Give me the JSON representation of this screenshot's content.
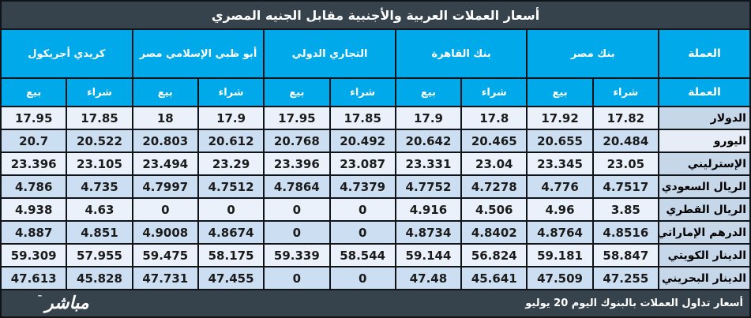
{
  "title": "أسعار العملات العربية والأجنبية مقابل الجنيه المصري",
  "colors": {
    "header_blue": "#00A9E9",
    "dark_slate": "#36434C",
    "row_light": "#EAF1FA",
    "row_medium": "#CCDEF1",
    "currency_cell": "#C7D7EA",
    "currency_cell_light": "#E7EDF6",
    "border": "#101418"
  },
  "table": {
    "currency_column_header": "العملة",
    "sell_label": "بيع",
    "buy_label": "شراء",
    "banks_note": "banks listed right-to-left as displayed; within each bank the buy (شراء) column is rightmost",
    "banks": [
      {
        "name": "بنك مصر"
      },
      {
        "name": "بنك القاهرة"
      },
      {
        "name": "التجاري الدولي"
      },
      {
        "name": "أبو ظبي الإسلامي مصر"
      },
      {
        "name": "كريدي أجريكول"
      }
    ],
    "rows": [
      {
        "currency": "الدولار",
        "rates": [
          {
            "buy": "17.82",
            "sell": "17.92"
          },
          {
            "buy": "17.8",
            "sell": "17.9"
          },
          {
            "buy": "17.85",
            "sell": "17.95"
          },
          {
            "buy": "17.9",
            "sell": "18"
          },
          {
            "buy": "17.85",
            "sell": "17.95"
          }
        ]
      },
      {
        "currency": "اليورو",
        "name_cell_light": true,
        "rates": [
          {
            "buy": "20.484",
            "sell": "20.655"
          },
          {
            "buy": "20.465",
            "sell": "20.642"
          },
          {
            "buy": "20.492",
            "sell": "20.768"
          },
          {
            "buy": "20.612",
            "sell": "20.803"
          },
          {
            "buy": "20.522",
            "sell": "20.7"
          }
        ]
      },
      {
        "currency": "الإسترليني",
        "rates": [
          {
            "buy": "23.05",
            "sell": "23.345"
          },
          {
            "buy": "23.04",
            "sell": "23.331"
          },
          {
            "buy": "23.087",
            "sell": "23.396"
          },
          {
            "buy": "23.29",
            "sell": "23.494"
          },
          {
            "buy": "23.105",
            "sell": "23.396"
          }
        ]
      },
      {
        "currency": "الريال السعودي",
        "rates": [
          {
            "buy": "4.7517",
            "sell": "4.776"
          },
          {
            "buy": "4.7278",
            "sell": "4.7752"
          },
          {
            "buy": "4.7379",
            "sell": "4.7864"
          },
          {
            "buy": "4.7512",
            "sell": "4.7997"
          },
          {
            "buy": "4.735",
            "sell": "4.786"
          }
        ]
      },
      {
        "currency": "الريال القطري",
        "rates": [
          {
            "buy": "3.85",
            "sell": "4.96"
          },
          {
            "buy": "4.506",
            "sell": "4.916"
          },
          {
            "buy": "0",
            "sell": "0"
          },
          {
            "buy": "0",
            "sell": "0"
          },
          {
            "buy": "4.63",
            "sell": "4.938"
          }
        ]
      },
      {
        "currency": "الدرهم الإماراتي",
        "rates": [
          {
            "buy": "4.8516",
            "sell": "4.8764"
          },
          {
            "buy": "4.8402",
            "sell": "4.8734"
          },
          {
            "buy": "0",
            "sell": "0"
          },
          {
            "buy": "4.8674",
            "sell": "4.9008"
          },
          {
            "buy": "4.851",
            "sell": "4.887"
          }
        ]
      },
      {
        "currency": "الدينار الكويتي",
        "rates": [
          {
            "buy": "58.847",
            "sell": "59.181"
          },
          {
            "buy": "56.824",
            "sell": "59.144"
          },
          {
            "buy": "58.544",
            "sell": "59.339"
          },
          {
            "buy": "58.175",
            "sell": "59.475"
          },
          {
            "buy": "57.955",
            "sell": "59.309"
          }
        ]
      },
      {
        "currency": "الدينار البحريني",
        "rates": [
          {
            "buy": "47.255",
            "sell": "47.509"
          },
          {
            "buy": "45.641",
            "sell": "47.48"
          },
          {
            "buy": "0",
            "sell": "0"
          },
          {
            "buy": "47.455",
            "sell": "47.731"
          },
          {
            "buy": "45.828",
            "sell": "47.613"
          }
        ]
      }
    ]
  },
  "footer": {
    "note": "أسعار تداول العملات بالبنوك اليوم 20 يوليو",
    "logo": "مباشر",
    "trademark": "™"
  }
}
